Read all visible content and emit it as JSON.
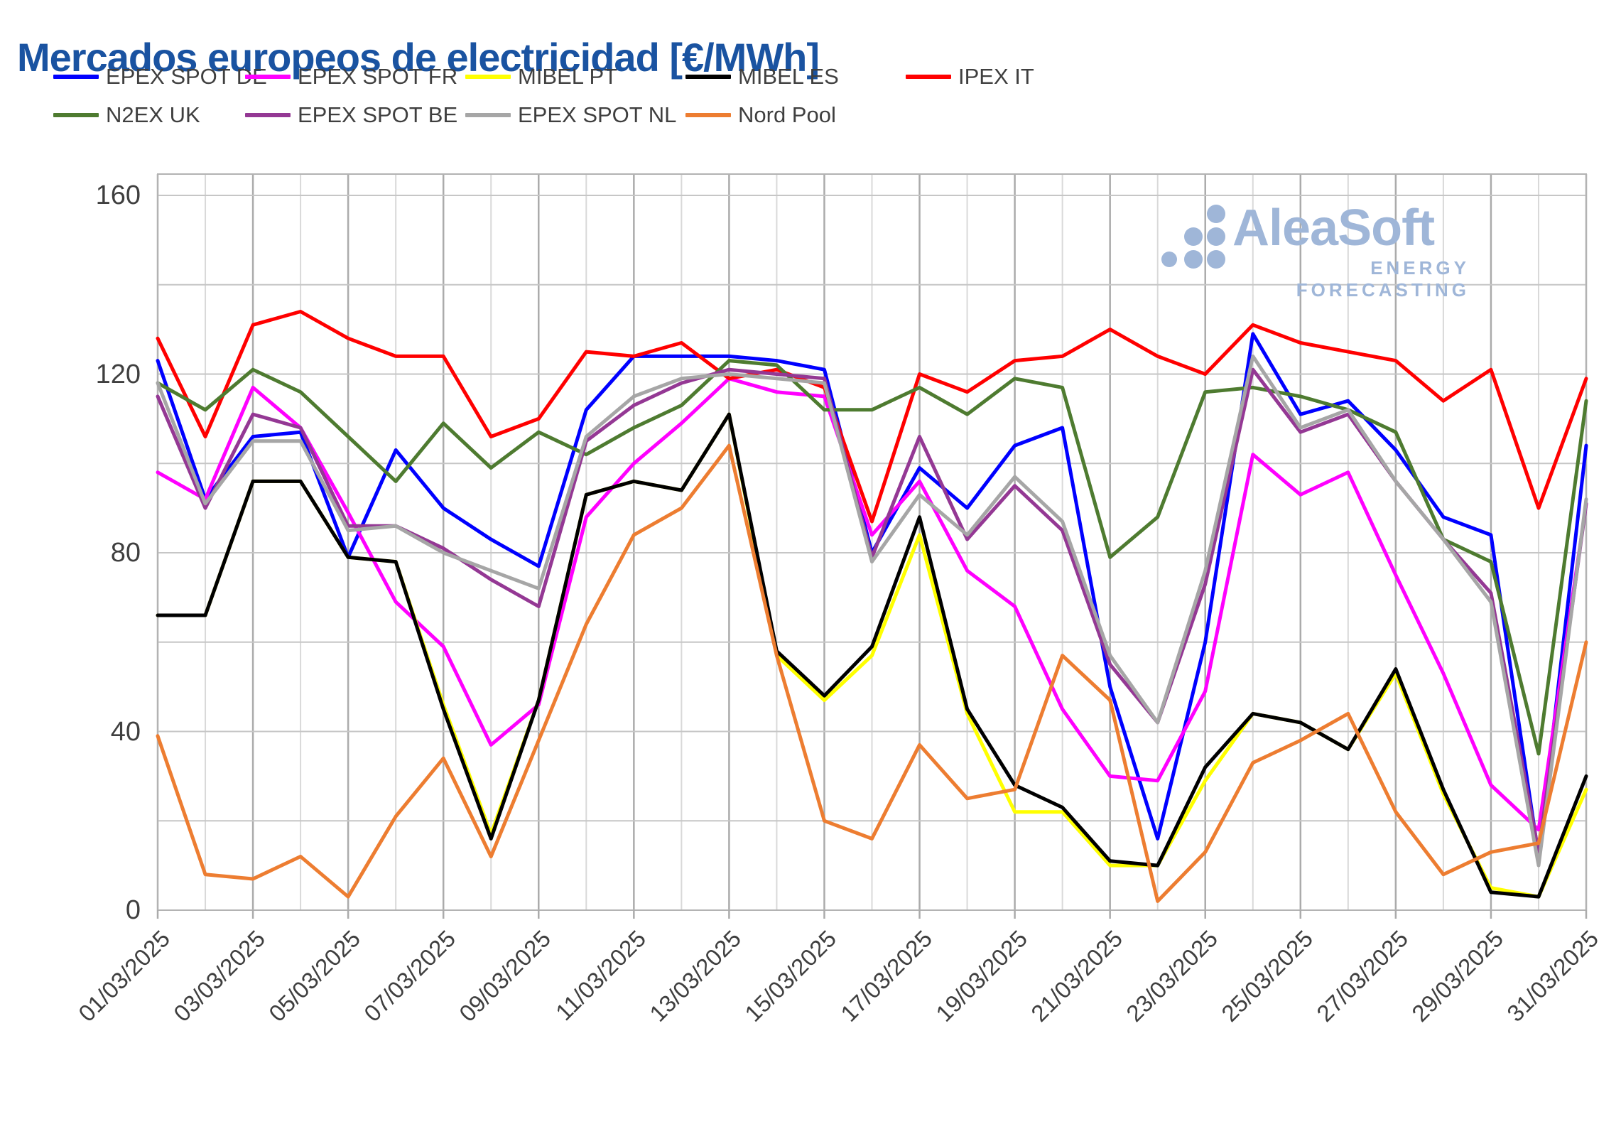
{
  "title": "Mercados europeos de electricidad [€/MWh]",
  "title_color": "#1a53a1",
  "text_color": "#3f3f3f",
  "logo": {
    "name": "AleaSoft",
    "tagline": "ENERGY FORECASTING",
    "color": "#9fb6d8"
  },
  "legend_rows": [
    [
      "EPEX SPOT DE",
      "EPEX SPOT FR",
      "MIBEL PT",
      "MIBEL ES",
      "IPEX IT"
    ],
    [
      "N2EX UK",
      "EPEX SPOT BE",
      "EPEX SPOT NL",
      "Nord Pool"
    ]
  ],
  "chart_data": {
    "type": "line",
    "title": "Mercados europeos de electricidad [€/MWh]",
    "ylim": [
      0,
      160
    ],
    "ytick_step": 20,
    "ylabel_step": 40,
    "ylabels": [
      "0",
      "40",
      "80",
      "120",
      "160"
    ],
    "grid": true,
    "legend_position": "top",
    "x": [
      "01/03/2025",
      "02/03/2025",
      "03/03/2025",
      "04/03/2025",
      "05/03/2025",
      "06/03/2025",
      "07/03/2025",
      "08/03/2025",
      "09/03/2025",
      "10/03/2025",
      "11/03/2025",
      "12/03/2025",
      "13/03/2025",
      "14/03/2025",
      "15/03/2025",
      "16/03/2025",
      "17/03/2025",
      "18/03/2025",
      "19/03/2025",
      "20/03/2025",
      "21/03/2025",
      "22/03/2025",
      "23/03/2025",
      "24/03/2025",
      "25/03/2025",
      "26/03/2025",
      "27/03/2025",
      "28/03/2025",
      "29/03/2025",
      "30/03/2025",
      "31/03/2025"
    ],
    "x_tick_labels": [
      "01/03/2025",
      "03/03/2025",
      "05/03/2025",
      "07/03/2025",
      "09/03/2025",
      "11/03/2025",
      "13/03/2025",
      "15/03/2025",
      "17/03/2025",
      "19/03/2025",
      "21/03/2025",
      "23/03/2025",
      "25/03/2025",
      "27/03/2025",
      "29/03/2025",
      "31/03/2025"
    ],
    "series": [
      {
        "name": "EPEX SPOT DE",
        "color": "#0000ff",
        "values": [
          123,
          92,
          106,
          107,
          79,
          103,
          90,
          83,
          77,
          112,
          124,
          124,
          124,
          123,
          121,
          80,
          99,
          90,
          104,
          108,
          50,
          16,
          60,
          129,
          111,
          114,
          103,
          88,
          84,
          12,
          104
        ]
      },
      {
        "name": "EPEX SPOT FR",
        "color": "#ff00ff",
        "values": [
          98,
          92,
          117,
          108,
          89,
          69,
          59,
          37,
          46,
          88,
          100,
          109,
          119,
          116,
          115,
          84,
          96,
          76,
          68,
          45,
          30,
          29,
          49,
          102,
          93,
          98,
          75,
          53,
          28,
          18,
          91
        ]
      },
      {
        "name": "MIBEL PT",
        "color": "#ffff00",
        "values": [
          66,
          66,
          96,
          96,
          79,
          78,
          46,
          17,
          47,
          93,
          96,
          94,
          111,
          57,
          47,
          57,
          84,
          44,
          22,
          22,
          10,
          10,
          29,
          44,
          42,
          36,
          53,
          26,
          5,
          3,
          27
        ]
      },
      {
        "name": "MIBEL ES",
        "color": "#000000",
        "values": [
          66,
          66,
          96,
          96,
          79,
          78,
          45,
          16,
          47,
          93,
          96,
          94,
          111,
          58,
          48,
          59,
          88,
          45,
          28,
          23,
          11,
          10,
          32,
          44,
          42,
          36,
          54,
          27,
          4,
          3,
          30
        ]
      },
      {
        "name": "IPEX IT",
        "color": "#ff0000",
        "values": [
          128,
          106,
          131,
          134,
          128,
          124,
          124,
          106,
          110,
          125,
          124,
          127,
          119,
          121,
          117,
          87,
          120,
          116,
          123,
          124,
          130,
          124,
          120,
          131,
          127,
          125,
          123,
          114,
          121,
          90,
          119
        ]
      },
      {
        "name": "N2EX UK",
        "color": "#4e7b30",
        "values": [
          118,
          112,
          121,
          116,
          106,
          96,
          109,
          99,
          107,
          102,
          108,
          113,
          123,
          122,
          112,
          112,
          117,
          111,
          119,
          117,
          79,
          88,
          116,
          117,
          115,
          112,
          107,
          83,
          78,
          35,
          114
        ]
      },
      {
        "name": "EPEX SPOT BE",
        "color": "#943894",
        "values": [
          115,
          90,
          111,
          108,
          86,
          86,
          81,
          74,
          68,
          105,
          113,
          118,
          121,
          120,
          119,
          79,
          106,
          83,
          95,
          85,
          55,
          42,
          73,
          121,
          107,
          111,
          96,
          83,
          71,
          13,
          91
        ]
      },
      {
        "name": "EPEX SPOT NL",
        "color": "#a6a6a6",
        "values": [
          118,
          91,
          105,
          105,
          85,
          86,
          80,
          76,
          72,
          106,
          115,
          119,
          120,
          119,
          118,
          78,
          93,
          84,
          97,
          87,
          57,
          42,
          76,
          124,
          108,
          112,
          96,
          83,
          69,
          10,
          92
        ]
      },
      {
        "name": "Nord Pool",
        "color": "#ed7d31",
        "values": [
          39,
          8,
          7,
          12,
          3,
          21,
          34,
          12,
          38,
          64,
          84,
          90,
          104,
          57,
          20,
          16,
          37,
          25,
          27,
          57,
          47,
          2,
          13,
          33,
          38,
          44,
          22,
          8,
          13,
          15,
          60
        ]
      }
    ]
  },
  "grid_colors": {
    "h_line": "#c6c6c6",
    "v_major": "#ababab",
    "v_minor": "#d9d9d9",
    "border": "#b3b3b3"
  }
}
